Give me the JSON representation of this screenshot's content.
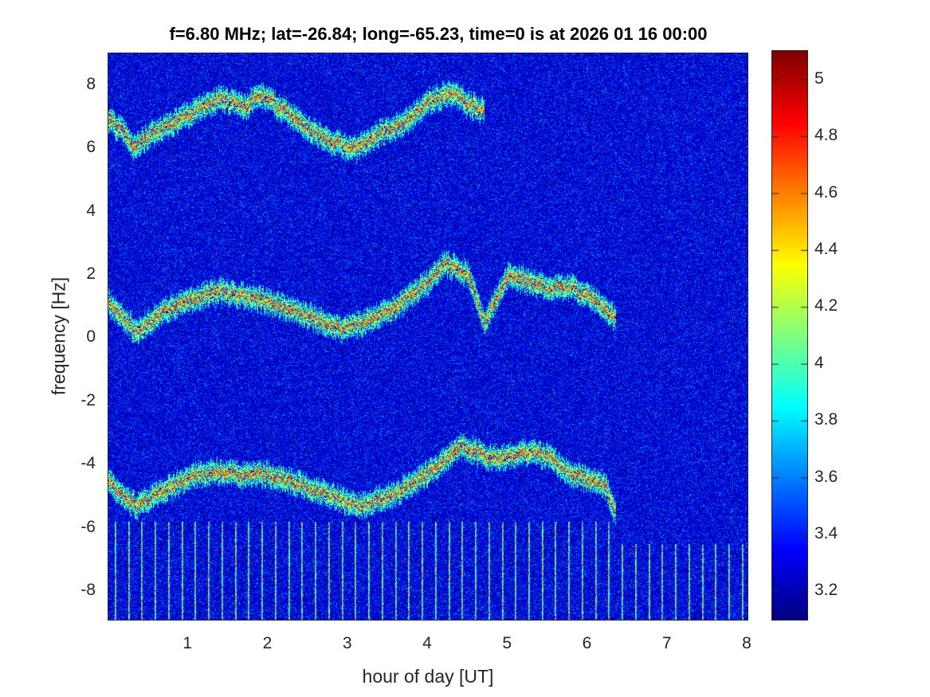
{
  "chart_data": {
    "type": "heatmap",
    "title": "f=6.80 MHz;  lat=-26.84; long=-65.23, time=0 is at 2026 01 16 00:00",
    "xlabel": "hour of day [UT]",
    "ylabel": "frequency [Hz]",
    "xlim": [
      0,
      8
    ],
    "ylim": [
      -8.9,
      9.0
    ],
    "xticks": [
      "1",
      "2",
      "3",
      "4",
      "5",
      "6",
      "7",
      "8"
    ],
    "yticks": [
      "8",
      "6",
      "4",
      "2",
      "0",
      "-2",
      "-4",
      "-6",
      "-8"
    ],
    "colorbar": {
      "range": [
        3.1,
        5.1
      ],
      "ticks": [
        "5",
        "4.8",
        "4.6",
        "4.4",
        "4.2",
        "4",
        "3.8",
        "3.6",
        "3.4",
        "3.2"
      ],
      "colormap": "jet"
    },
    "traces": [
      {
        "name": "upper",
        "points": [
          [
            0,
            6.9
          ],
          [
            0.2,
            6.5
          ],
          [
            0.3,
            6.0
          ],
          [
            0.5,
            6.4
          ],
          [
            0.8,
            6.8
          ],
          [
            1.1,
            7.2
          ],
          [
            1.4,
            7.6
          ],
          [
            1.7,
            7.3
          ],
          [
            1.9,
            7.7
          ],
          [
            2.2,
            7.2
          ],
          [
            2.5,
            6.6
          ],
          [
            2.8,
            6.2
          ],
          [
            3.1,
            6.0
          ],
          [
            3.4,
            6.5
          ],
          [
            3.7,
            6.8
          ],
          [
            4.0,
            7.5
          ],
          [
            4.3,
            7.8
          ],
          [
            4.5,
            7.4
          ],
          [
            4.7,
            7.2
          ]
        ]
      },
      {
        "name": "middle",
        "points": [
          [
            0,
            1.1
          ],
          [
            0.2,
            0.6
          ],
          [
            0.35,
            0.2
          ],
          [
            0.7,
            0.9
          ],
          [
            1.0,
            1.2
          ],
          [
            1.4,
            1.5
          ],
          [
            1.8,
            1.3
          ],
          [
            2.2,
            1.0
          ],
          [
            2.6,
            0.6
          ],
          [
            2.9,
            0.3
          ],
          [
            3.2,
            0.5
          ],
          [
            3.6,
            1.0
          ],
          [
            4.0,
            1.8
          ],
          [
            4.2,
            2.4
          ],
          [
            4.5,
            2.0
          ],
          [
            4.7,
            0.5
          ],
          [
            5.0,
            2.0
          ],
          [
            5.5,
            1.6
          ],
          [
            5.8,
            1.6
          ],
          [
            6.1,
            1.2
          ],
          [
            6.35,
            0.6
          ]
        ]
      },
      {
        "name": "lower",
        "points": [
          [
            0,
            -4.5
          ],
          [
            0.2,
            -5.0
          ],
          [
            0.35,
            -5.3
          ],
          [
            0.7,
            -4.8
          ],
          [
            1.0,
            -4.4
          ],
          [
            1.3,
            -4.2
          ],
          [
            1.6,
            -4.3
          ],
          [
            2.0,
            -4.3
          ],
          [
            2.4,
            -4.6
          ],
          [
            2.8,
            -5.0
          ],
          [
            3.1,
            -5.3
          ],
          [
            3.5,
            -5.0
          ],
          [
            3.8,
            -4.6
          ],
          [
            4.2,
            -3.9
          ],
          [
            4.4,
            -3.4
          ],
          [
            4.8,
            -3.8
          ],
          [
            5.2,
            -3.6
          ],
          [
            5.5,
            -3.7
          ],
          [
            5.8,
            -4.3
          ],
          [
            6.2,
            -4.6
          ],
          [
            6.35,
            -5.5
          ]
        ]
      }
    ],
    "streak_interval_hours": 0.167
  }
}
